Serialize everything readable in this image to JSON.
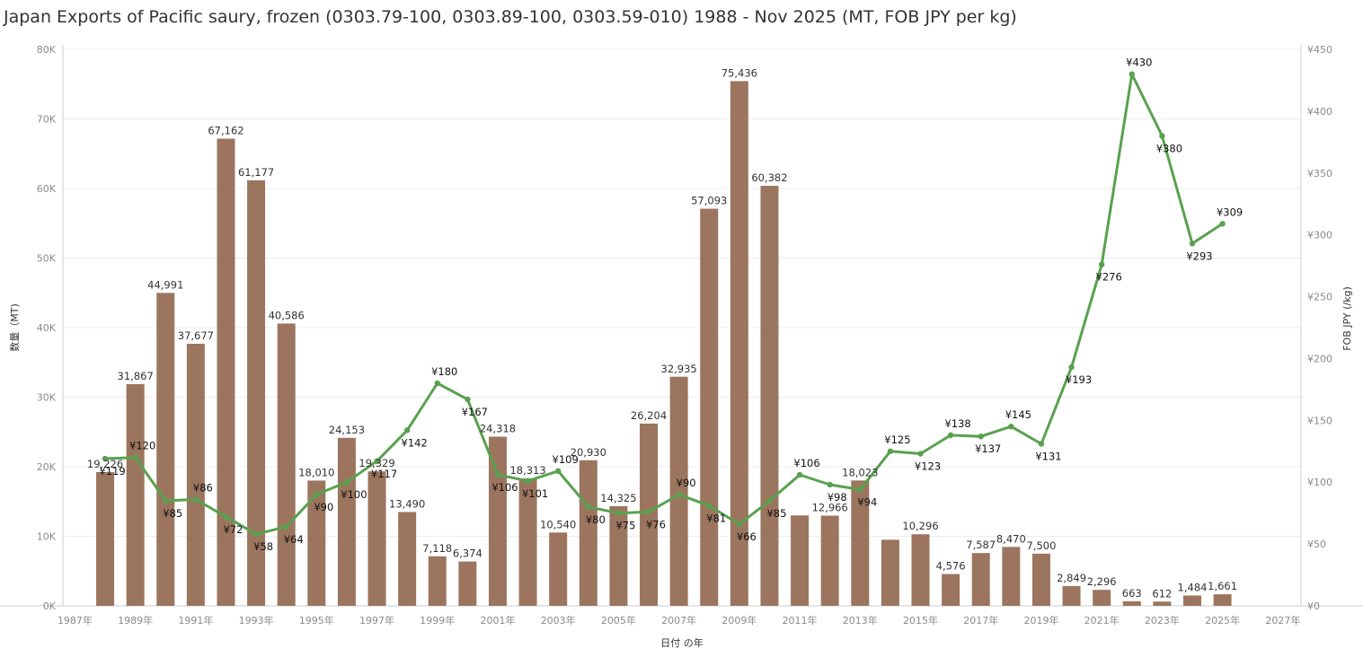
{
  "title": "Japan Exports of Pacific saury, frozen (0303.79-100, 0303.89-100, 0303.59-010) 1988 - Nov 2025 (MT, FOB JPY per kg)",
  "colors": {
    "bar": "#9c755f",
    "line": "#59a14f",
    "grid": "#ececec",
    "axis": "#cccccc"
  },
  "chart_data": {
    "type": "bar",
    "title": "Japan Exports of Pacific saury, frozen (0303.79-100, 0303.89-100, 0303.59-010) 1988 - Nov 2025 (MT, FOB JPY per kg)",
    "xlabel": "日付 の年",
    "ylabel": "数量（MT)",
    "y2label": "FOB JPY (/kg)",
    "xlim": [
      1986.6,
      2027.6
    ],
    "ylim": [
      0,
      80000
    ],
    "y2lim": [
      0,
      450
    ],
    "grid": true,
    "x_ticks": [
      "1987年",
      "1989年",
      "1991年",
      "1993年",
      "1995年",
      "1997年",
      "1999年",
      "2001年",
      "2003年",
      "2005年",
      "2007年",
      "2009年",
      "2011年",
      "2013年",
      "2015年",
      "2017年",
      "2019年",
      "2021年",
      "2023年",
      "2025年",
      "2027年"
    ],
    "x_tick_values": [
      1987,
      1989,
      1991,
      1993,
      1995,
      1997,
      1999,
      2001,
      2003,
      2005,
      2007,
      2009,
      2011,
      2013,
      2015,
      2017,
      2019,
      2021,
      2023,
      2025,
      2027
    ],
    "y_ticks": [
      "0K",
      "10K",
      "20K",
      "30K",
      "40K",
      "50K",
      "60K",
      "70K",
      "80K"
    ],
    "y_tick_values": [
      0,
      10000,
      20000,
      30000,
      40000,
      50000,
      60000,
      70000,
      80000
    ],
    "y2_ticks": [
      "¥0",
      "¥50",
      "¥100",
      "¥150",
      "¥200",
      "¥250",
      "¥300",
      "¥350",
      "¥400",
      "¥450"
    ],
    "y2_tick_values": [
      0,
      50,
      100,
      150,
      200,
      250,
      300,
      350,
      400,
      450
    ],
    "years": [
      1988,
      1989,
      1990,
      1991,
      1992,
      1993,
      1994,
      1995,
      1996,
      1997,
      1998,
      1999,
      2000,
      2001,
      2002,
      2003,
      2004,
      2005,
      2006,
      2007,
      2008,
      2009,
      2010,
      2011,
      2012,
      2013,
      2014,
      2015,
      2016,
      2017,
      2018,
      2019,
      2020,
      2021,
      2022,
      2023,
      2024,
      2025
    ],
    "series": [
      {
        "name": "数量（MT)",
        "type": "bar",
        "axis": "left",
        "values": [
          19226,
          31867,
          44991,
          37677,
          67162,
          61177,
          40586,
          18010,
          24153,
          19329,
          13490,
          7118,
          6374,
          24318,
          18313,
          10540,
          20930,
          14325,
          26204,
          32935,
          57093,
          75436,
          60382,
          13000,
          12966,
          18023,
          9500,
          10296,
          4576,
          7587,
          8470,
          7500,
          2849,
          2296,
          663,
          612,
          1484,
          1661
        ],
        "labels": [
          "19,226",
          "31,867",
          "44,991",
          "37,677",
          "67,162",
          "61,177",
          "40,586",
          "18,010",
          "24,153",
          "19,329",
          "13,490",
          "7,118",
          "6,374",
          "24,318",
          "18,313",
          "10,540",
          "20,930",
          "14,325",
          "26,204",
          "32,935",
          "57,093",
          "75,436",
          "60,382",
          "",
          "12,966",
          "18,023",
          "",
          "10,296",
          "4,576",
          "7,587",
          "8,470",
          "7,500",
          "2,849",
          "2,296",
          "663",
          "612",
          "1,484",
          "1,661"
        ]
      },
      {
        "name": "FOB JPY (/kg)",
        "type": "line",
        "axis": "right",
        "values": [
          119,
          120,
          85,
          86,
          72,
          58,
          64,
          90,
          100,
          117,
          142,
          180,
          167,
          106,
          101,
          109,
          80,
          75,
          76,
          90,
          81,
          66,
          85,
          106,
          98,
          94,
          125,
          123,
          138,
          137,
          145,
          131,
          193,
          276,
          430,
          380,
          293,
          309
        ],
        "labels": [
          "¥119",
          "¥120",
          "¥85",
          "¥86",
          "¥72",
          "¥58",
          "¥64",
          "¥90",
          "¥100",
          "¥117",
          "¥142",
          "¥180",
          "¥167",
          "¥106",
          "¥101",
          "¥109",
          "¥80",
          "¥75",
          "¥76",
          "¥90",
          "¥81",
          "¥66",
          "¥85",
          "¥106",
          "¥98",
          "¥94",
          "¥125",
          "¥123",
          "¥138",
          "¥137",
          "¥145",
          "¥131",
          "¥193",
          "¥276",
          "¥430",
          "¥380",
          "¥293",
          "¥309"
        ]
      }
    ]
  }
}
